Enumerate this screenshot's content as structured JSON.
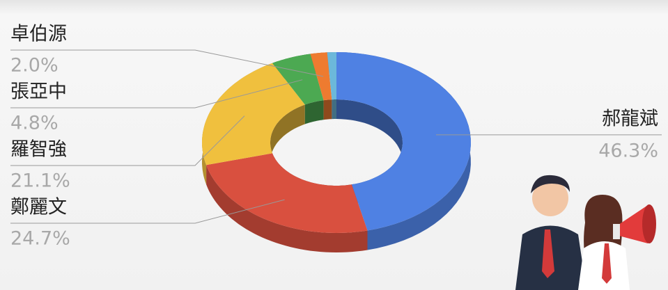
{
  "chart_data": {
    "type": "pie",
    "donut": true,
    "three_d": true,
    "categories": [
      "郝龍斌",
      "鄭麗文",
      "羅智強",
      "張亞中",
      "卓伯源",
      null
    ],
    "values": [
      46.3,
      24.7,
      21.1,
      4.8,
      2.0,
      1.1
    ],
    "value_labels": [
      "46.3%",
      "24.7%",
      "21.1%",
      "4.8%",
      "2.0%",
      null
    ],
    "colors": [
      "#4f81e3",
      "#d9503f",
      "#f0c03e",
      "#4ca952",
      "#ee7b30",
      "#6cb8da"
    ]
  }
}
